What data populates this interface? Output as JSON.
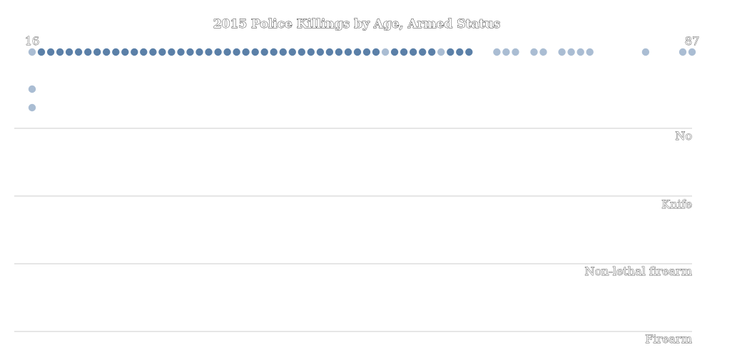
{
  "chart_data": {
    "type": "scatter",
    "title": "2015 Police Killings by Age, Armed Status",
    "xlim": [
      16,
      87
    ],
    "x_start_label": "16",
    "x_end_label": "87",
    "categories": [
      "No",
      "Knife",
      "Non-lethal firearm",
      "Firearm"
    ],
    "colors": {
      "dark": "#5b80a8",
      "light": "#aabdd3",
      "divider": "#cccccc"
    },
    "top_row": {
      "dark_ages": [
        17,
        18,
        19,
        20,
        21,
        22,
        23,
        24,
        25,
        26,
        27,
        28,
        29,
        30,
        31,
        32,
        33,
        34,
        35,
        36,
        37,
        38,
        39,
        40,
        41,
        42,
        43,
        44,
        45,
        46,
        47,
        48,
        49,
        50,
        51,
        52,
        53,
        55,
        56,
        57,
        58,
        59,
        61,
        62,
        63
      ],
      "light_ages": [
        16,
        54,
        60,
        66,
        67,
        68,
        70,
        71,
        73,
        74,
        75,
        76,
        82,
        86,
        87
      ]
    },
    "extra_points": [
      {
        "age": 16,
        "row": 2
      },
      {
        "age": 16,
        "row": 3
      }
    ]
  }
}
